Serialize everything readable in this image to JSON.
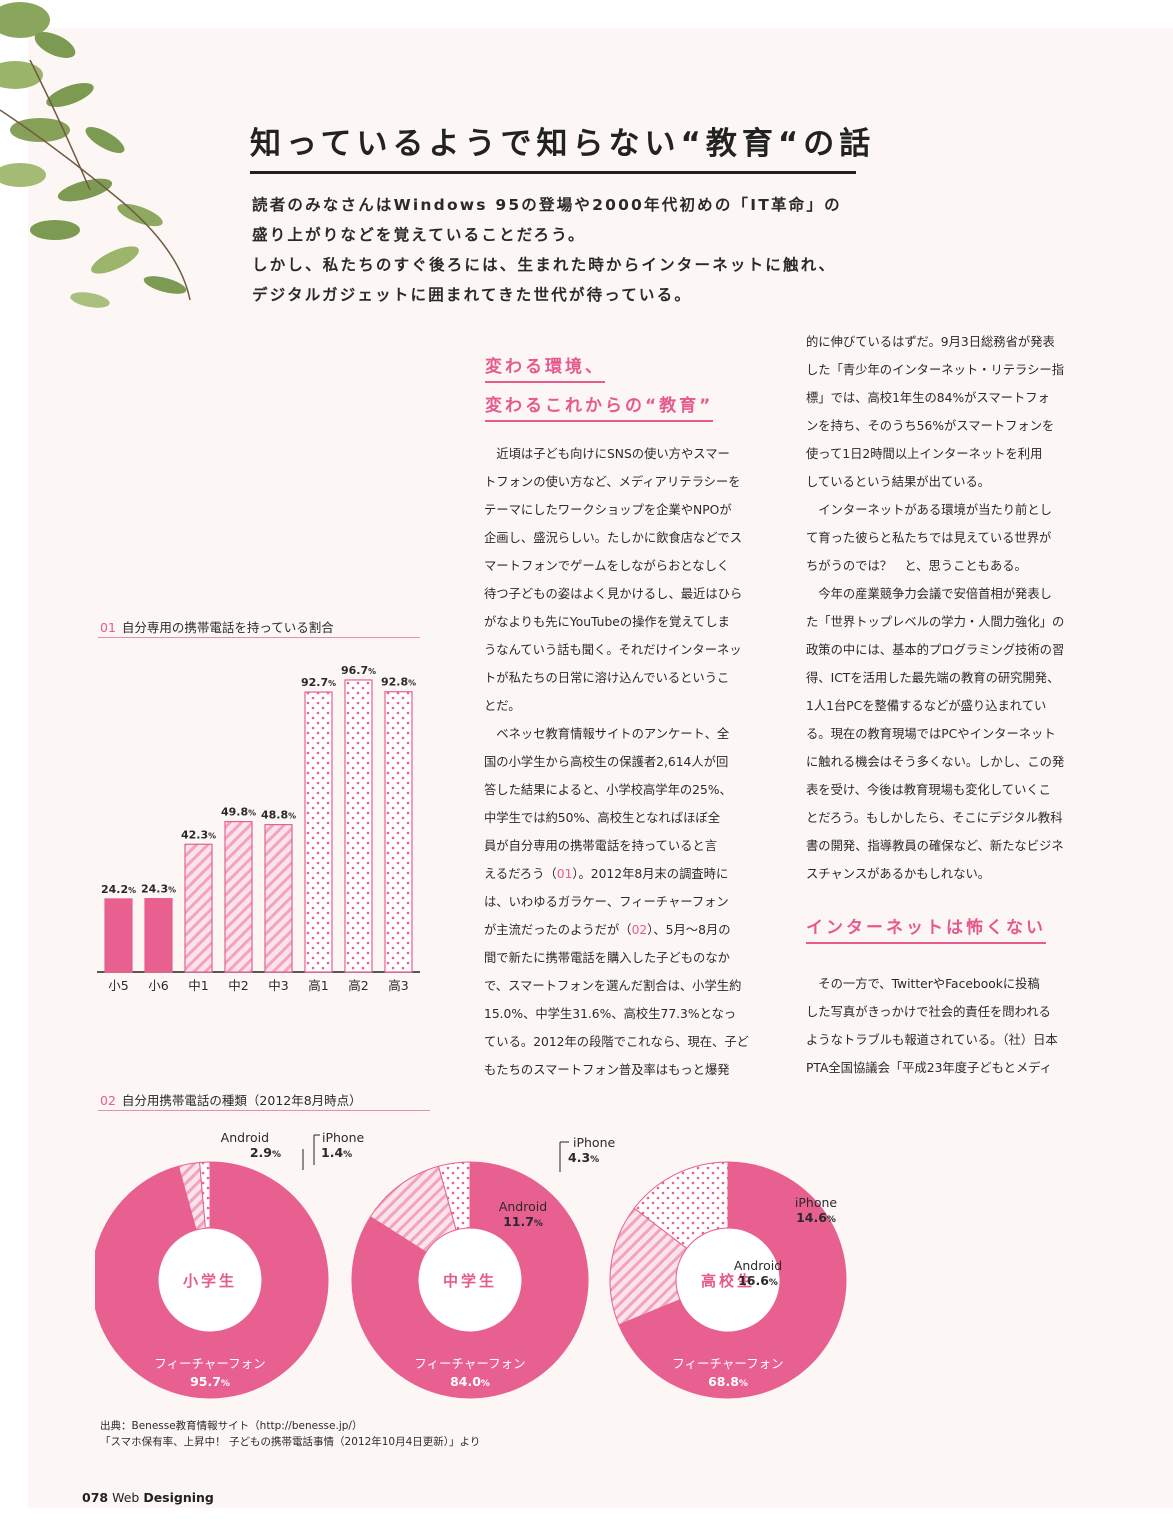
{
  "title": "知っているようで知らない“教育“の話",
  "lead": [
    "読者のみなさんはWindows 95の登場や2000年代初めの「IT革命」の",
    "盛り上がりなどを覚えていることだろう。",
    "しかし、私たちのすぐ後ろには、生まれた時からインターネットに触れ、",
    "デジタルガジェットに囲まれてきた世代が待っている。"
  ],
  "section1": {
    "heading": [
      "変わる環境、",
      "変わるこれからの“教育”"
    ],
    "col_mid": [
      "　近頃は子ども向けにSNSの使い方やスマー",
      "トフォンの使い方など、メディアリテラシーを",
      "テーマにしたワークショップを企業やNPOが",
      "企画し、盛況らしい。たしかに飲食店などでス",
      "マートフォンでゲームをしながらおとなしく",
      "待つ子どもの姿はよく見かけるし、最近はひら",
      "がなよりも先にYouTubeの操作を覚えてしま",
      "うなんていう話も聞く。それだけインターネッ",
      "トが私たちの日常に溶け込んでいるというこ",
      "とだ。",
      "　ベネッセ教育情報サイトのアンケート、全",
      "国の小学生から高校生の保護者2,614人が回",
      "答した結果によると、小学校高学年の25%、",
      "中学生では約50%、高校生となればほぼ全",
      "員が自分専用の携帯電話を持っていると言"
    ],
    "line16_pre": "えるだろう（",
    "ref01": "01",
    "line16_post": "）。2012年8月末の調査時に",
    "line17": "は、いわゆるガラケー、フィーチャーフォン",
    "line18_pre": "が主流だったのようだが（",
    "ref02": "02",
    "line18_post": "）、5月〜8月の",
    "col_mid_tail": [
      "間で新たに携帯電話を購入した子どものなか",
      "で、スマートフォンを選んだ割合は、小学生約",
      "15.0%、中学生31.6%、高校生77.3%となっ",
      "ている。2012年の段階でこれなら、現在、子ど",
      "もたちのスマートフォン普及率はもっと爆発"
    ],
    "col_right": [
      "的に伸びているはずだ。9月3日総務省が発表",
      "した「青少年のインターネット・リテラシー指",
      "標」では、高校1年生の84%がスマートフォ",
      "ンを持ち、そのうち56%がスマートフォンを",
      "使って1日2時間以上インターネットを利用",
      "しているという結果が出ている。",
      "　インターネットがある環境が当たり前とし",
      "て育った彼らと私たちでは見えている世界が",
      "ちがうのでは？　と、思うこともある。",
      "　今年の産業競争力会議で安倍首相が発表し",
      "た「世界トップレベルの学力・人間力強化」の",
      "政策の中には、基本的プログラミング技術の習",
      "得、ICTを活用した最先端の教育の研究開発、",
      "1人1台PCを整備するなどが盛り込まれてい",
      "る。現在の教育現場ではPCやインターネット",
      "に触れる機会はそう多くない。しかし、この発",
      "表を受け、今後は教育現場も変化していくこ",
      "とだろう。もしかしたら、そこにデジタル教科",
      "書の開発、指導教員の確保など、新たなビジネ",
      "スチャンスがあるかもしれない。"
    ]
  },
  "section2": {
    "heading": "インターネットは怖くない",
    "col_right": [
      "　その一方で、TwitterやFacebookに投稿",
      "した写真がきっかけで社会的責任を問われる",
      "ようなトラブルも報道されている。（社）日本",
      "PTA全国協議会「平成23年度子どもとメディ"
    ]
  },
  "fig1": {
    "num": "01",
    "caption": "自分専用の携帯電話を持っている割合"
  },
  "fig2": {
    "num": "02",
    "caption": "自分用携帯電話の種類（2012年8月時点）"
  },
  "chart_data": [
    {
      "type": "bar",
      "categories": [
        "小5",
        "小6",
        "中1",
        "中2",
        "中3",
        "高1",
        "高2",
        "高3"
      ],
      "values": [
        24.2,
        24.3,
        42.3,
        49.8,
        48.8,
        92.7,
        96.7,
        92.8
      ],
      "labels": [
        "24.2",
        "24.3",
        "42.3",
        "49.8",
        "48.8",
        "92.7",
        "96.7",
        "92.8"
      ],
      "unit": "%",
      "ylim": [
        0,
        100
      ],
      "styles": [
        "solid",
        "solid",
        "stripe",
        "stripe",
        "stripe",
        "dot",
        "dot",
        "dot"
      ]
    },
    {
      "type": "pie",
      "donut": true,
      "charts": [
        {
          "center": "小学生",
          "slices": [
            {
              "name": "フィーチャーフォン",
              "value": 95.7,
              "label": "95.7"
            },
            {
              "name": "Android",
              "value": 2.9,
              "label": "2.9"
            },
            {
              "name": "iPhone",
              "value": 1.4,
              "label": "1.4"
            }
          ]
        },
        {
          "center": "中学生",
          "slices": [
            {
              "name": "フィーチャーフォン",
              "value": 84.0,
              "label": "84.0"
            },
            {
              "name": "Android",
              "value": 11.7,
              "label": "11.7"
            },
            {
              "name": "iPhone",
              "value": 4.3,
              "label": "4.3"
            }
          ]
        },
        {
          "center": "高校生",
          "slices": [
            {
              "name": "フィーチャーフォン",
              "value": 68.8,
              "label": "68.8"
            },
            {
              "name": "Android",
              "value": 16.6,
              "label": "16.6"
            },
            {
              "name": "iPhone",
              "value": 14.6,
              "label": "14.6"
            }
          ]
        }
      ],
      "unit": "%"
    }
  ],
  "colors": {
    "accent": "#e65a8e",
    "pink": "#e8608f",
    "light_pink": "#f7c6d6",
    "page": "#fcf7f5"
  },
  "source": [
    "出典：Benesse教育情報サイト（http://benesse.jp/）",
    "「スマホ保有率、上昇中！ 子どもの携帯電話事情（2012年10月4日更新）」より"
  ],
  "folio": {
    "page": "078",
    "mag_a": "Web",
    "mag_b": "Designing"
  }
}
